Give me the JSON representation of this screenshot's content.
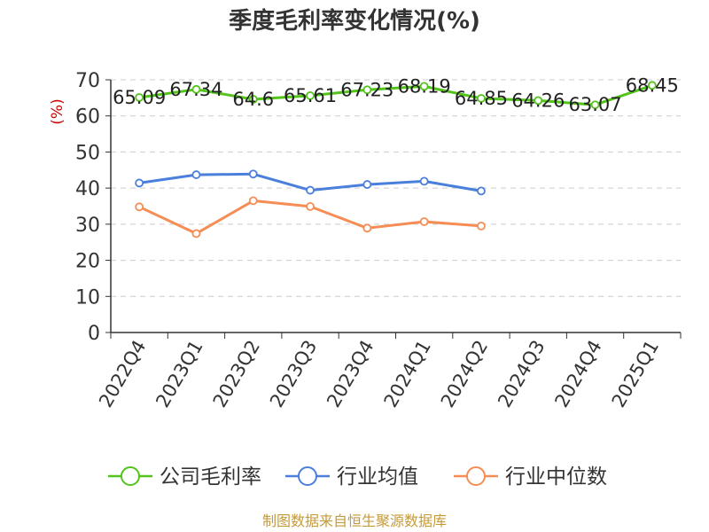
{
  "chart_data": {
    "type": "line",
    "title": "季度毛利率变化情况(%)",
    "ylabel": "(%)",
    "ylim": [
      0,
      70
    ],
    "yticks": [
      0,
      10,
      20,
      30,
      40,
      50,
      60,
      70
    ],
    "grid": true,
    "legend_position": "bottom",
    "categories": [
      "2022Q4",
      "2023Q1",
      "2023Q2",
      "2023Q3",
      "2023Q4",
      "2024Q1",
      "2024Q2",
      "2024Q3",
      "2024Q4",
      "2025Q1"
    ],
    "series": [
      {
        "name": "公司毛利率",
        "color": "#52c41a",
        "values": [
          65.09,
          67.34,
          64.6,
          65.61,
          67.23,
          68.19,
          64.85,
          64.26,
          63.07,
          68.45
        ],
        "labels": [
          "65.09",
          "67.34",
          "64.6",
          "65.61",
          "67.23",
          "68.19",
          "64.85",
          "64.26",
          "63.07",
          "68.45"
        ]
      },
      {
        "name": "行业均值",
        "color": "#4a7fdc",
        "values": [
          41.4,
          43.7,
          43.9,
          39.4,
          41.0,
          41.9,
          39.2,
          null,
          null,
          null
        ]
      },
      {
        "name": "行业中位数",
        "color": "#f58d55",
        "values": [
          34.8,
          27.4,
          36.5,
          34.9,
          28.9,
          30.7,
          29.5,
          null,
          null,
          null
        ]
      }
    ],
    "source": "制图数据来自恒生聚源数据库",
    "source_color": "#c49a3a",
    "ylabel_color": "#cc0000"
  }
}
